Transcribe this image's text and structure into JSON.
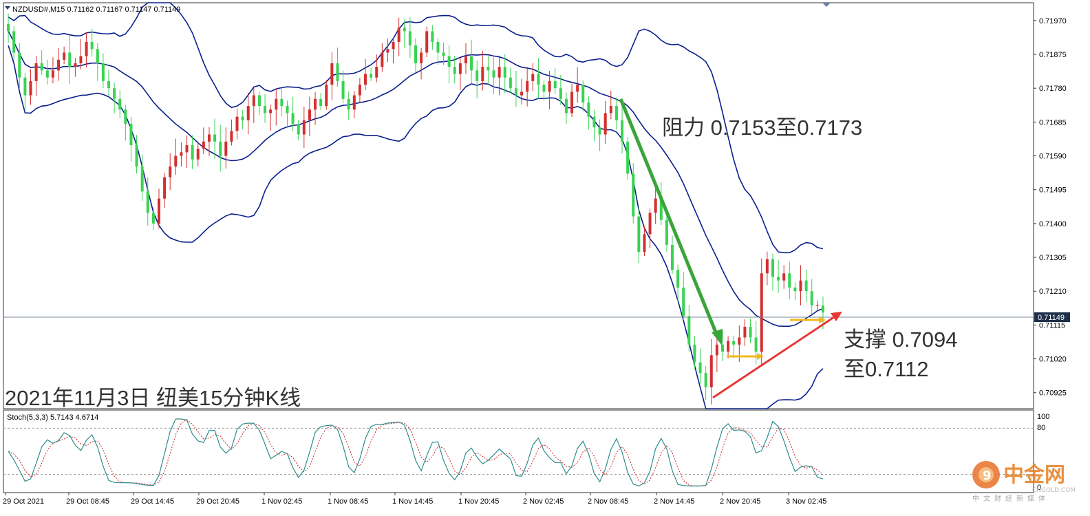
{
  "chart_data": [
    {
      "type": "candlestick",
      "header": "NZDUSD#,M15  0.71162 0.71167 0.71147 0.71149",
      "symbol": "NZDUSD#",
      "timeframe": "M15",
      "ohlc_header": {
        "open": 0.71162,
        "high": 0.71167,
        "low": 0.71147,
        "close": 0.71149
      },
      "ylim": [
        0.7088,
        0.7202
      ],
      "y_ticks": [
        "0.71970",
        "0.71875",
        "0.71780",
        "0.71685",
        "0.71590",
        "0.71495",
        "0.71400",
        "0.71305",
        "0.71210",
        "0.71115",
        "0.71020",
        "0.70925"
      ],
      "x_ticks": [
        "29 Oct 2021",
        "29 Oct 08:45",
        "29 Oct 14:45",
        "29 Oct 20:45",
        "1 Nov 02:45",
        "1 Nov 08:45",
        "1 Nov 14:45",
        "1 Nov 20:45",
        "2 Nov 02:45",
        "2 Nov 08:45",
        "2 Nov 14:45",
        "2 Nov 20:45",
        "3 Nov 02:45"
      ],
      "current_price": "0.71149",
      "close_series": [
        0.7194,
        0.7188,
        0.7181,
        0.7176,
        0.718,
        0.7185,
        0.7183,
        0.7181,
        0.7183,
        0.7186,
        0.7188,
        0.7184,
        0.7185,
        0.7187,
        0.7191,
        0.7189,
        0.7185,
        0.718,
        0.7178,
        0.7175,
        0.7172,
        0.7168,
        0.7162,
        0.7156,
        0.7149,
        0.7143,
        0.714,
        0.7147,
        0.7153,
        0.7156,
        0.7159,
        0.716,
        0.7162,
        0.7158,
        0.7161,
        0.7163,
        0.7165,
        0.7163,
        0.7159,
        0.7163,
        0.7166,
        0.717,
        0.7169,
        0.7173,
        0.7176,
        0.7173,
        0.7171,
        0.7172,
        0.7175,
        0.7173,
        0.7171,
        0.7168,
        0.7165,
        0.7169,
        0.7172,
        0.7175,
        0.7173,
        0.7179,
        0.7185,
        0.718,
        0.7175,
        0.7172,
        0.7176,
        0.7179,
        0.7182,
        0.7181,
        0.7184,
        0.7188,
        0.7189,
        0.7191,
        0.7195,
        0.7194,
        0.719,
        0.7185,
        0.7188,
        0.7194,
        0.7191,
        0.7188,
        0.7187,
        0.7184,
        0.7182,
        0.7185,
        0.7187,
        0.7183,
        0.718,
        0.7184,
        0.7183,
        0.7181,
        0.7184,
        0.7181,
        0.7178,
        0.7176,
        0.7177,
        0.718,
        0.7182,
        0.7179,
        0.7177,
        0.718,
        0.7178,
        0.7175,
        0.7171,
        0.7177,
        0.7179,
        0.7174,
        0.717,
        0.7167,
        0.7165,
        0.7171,
        0.7173,
        0.7169,
        0.7163,
        0.7154,
        0.7142,
        0.7132,
        0.7137,
        0.7143,
        0.7147,
        0.7141,
        0.7134,
        0.7127,
        0.7122,
        0.7114,
        0.7106,
        0.7101,
        0.7098,
        0.7094,
        0.7103,
        0.7106,
        0.7104,
        0.7107,
        0.7106,
        0.7108,
        0.7111,
        0.7108,
        0.7104,
        0.7126,
        0.713,
        0.7125,
        0.7124,
        0.7126,
        0.7122,
        0.7121,
        0.7124,
        0.7121,
        0.7117,
        0.7117,
        0.7115
      ],
      "bollinger_bands": "middle, upper, lower bands (dark blue)",
      "annotations": [
        {
          "text": "阻力 0.7153至0.7173",
          "type": "resistance"
        },
        {
          "text": "支撑 0.7094",
          "type": "support"
        },
        {
          "text": "至0.7112",
          "type": "support"
        }
      ],
      "title": "2021年11月3日 纽美15分钟K线"
    },
    {
      "type": "line",
      "indicator": "Stoch(5,3,3) 5.7143 4.6714",
      "params": "5,3,3",
      "main_value": "5.7143",
      "signal_value": "4.6714",
      "ylim": [
        0,
        100
      ],
      "levels": [
        "100",
        "80",
        "0"
      ],
      "note": "%K solid teal line, %D dashed red line, oscillating between overbought and oversold"
    }
  ],
  "watermark": {
    "brand": "中金网",
    "domain": "CNGOLD.COM",
    "tagline": "中文财经新媒体"
  }
}
